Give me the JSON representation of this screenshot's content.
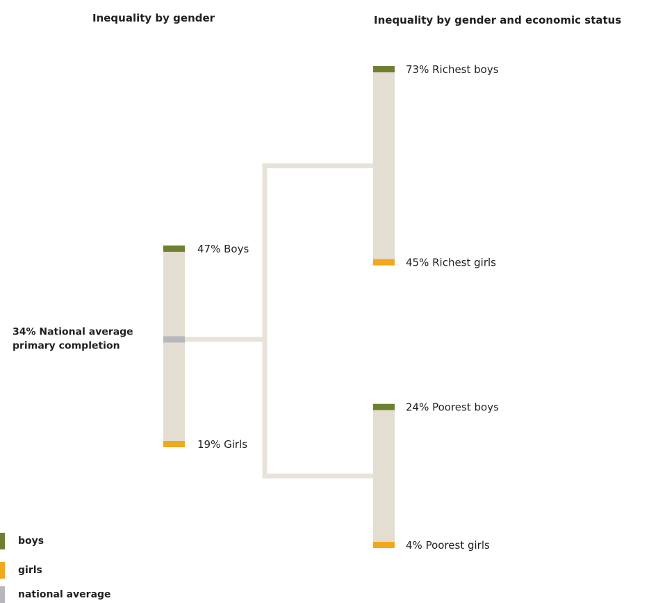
{
  "colors": {
    "boys": "#6f7f31",
    "girls": "#f2a81d",
    "national_average": "#b7b7bd",
    "bar_track": "#e3ddd2",
    "connector": "#e8e3d9"
  },
  "chart_data": [
    {
      "type": "bar",
      "title": "Inequality by gender",
      "ylim": [
        0,
        100
      ],
      "markers": [
        {
          "key": "boys",
          "value": 47,
          "label": "47% Boys",
          "color_key": "boys"
        },
        {
          "key": "national_average",
          "value": 34,
          "label": "34% National average primary completion",
          "color_key": "national_average"
        },
        {
          "key": "girls",
          "value": 19,
          "label": "19% Girls",
          "color_key": "girls"
        }
      ],
      "national_average_label_lines": [
        "34% National average",
        "primary completion"
      ]
    },
    {
      "type": "bar",
      "title": "Inequality by gender and economic status",
      "ylim": [
        0,
        100
      ],
      "groups": [
        {
          "name": "Richest",
          "markers": [
            {
              "key": "richest_boys",
              "value": 73,
              "label": "73% Richest boys",
              "color_key": "boys"
            },
            {
              "key": "richest_girls",
              "value": 45,
              "label": "45% Richest girls",
              "color_key": "girls"
            }
          ]
        },
        {
          "name": "Poorest",
          "markers": [
            {
              "key": "poorest_boys",
              "value": 24,
              "label": "24% Poorest boys",
              "color_key": "boys"
            },
            {
              "key": "poorest_girls",
              "value": 4,
              "label": "4% Poorest girls",
              "color_key": "girls"
            }
          ]
        }
      ]
    }
  ],
  "legend": [
    {
      "label": "boys",
      "color_key": "boys"
    },
    {
      "label": "girls",
      "color_key": "girls"
    },
    {
      "label": "national average",
      "color_key": "national_average"
    }
  ]
}
